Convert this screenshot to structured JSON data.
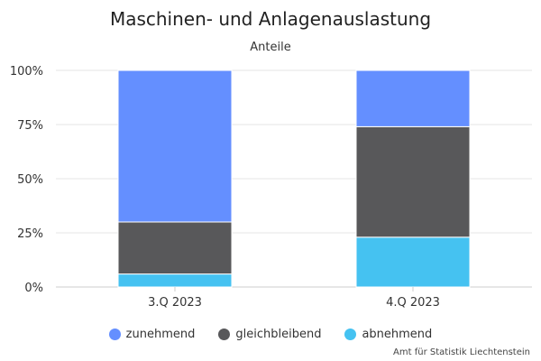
{
  "chart_data": {
    "type": "bar",
    "stacked": true,
    "title": "Maschinen- und Anlagenauslastung",
    "subtitle": "Anteile",
    "categories": [
      "3.Q 2023",
      "4.Q 2023"
    ],
    "series": [
      {
        "name": "abnehmend",
        "color": "#45c2f1",
        "values": [
          6,
          23
        ]
      },
      {
        "name": "gleichbleibend",
        "color": "#58585a",
        "values": [
          24,
          51
        ]
      },
      {
        "name": "zunehmend",
        "color": "#648fff",
        "values": [
          70,
          26
        ]
      }
    ],
    "legend_order": [
      "zunehmend",
      "gleichbleibend",
      "abnehmend"
    ],
    "ylim": [
      0,
      100
    ],
    "yticks": [
      0,
      25,
      50,
      75,
      100
    ],
    "ytick_labels": [
      "0%",
      "25%",
      "50%",
      "75%",
      "100%"
    ],
    "grid": true,
    "legend_position": "bottom-center"
  },
  "credit": "Amt für Statistik Liechtenstein"
}
